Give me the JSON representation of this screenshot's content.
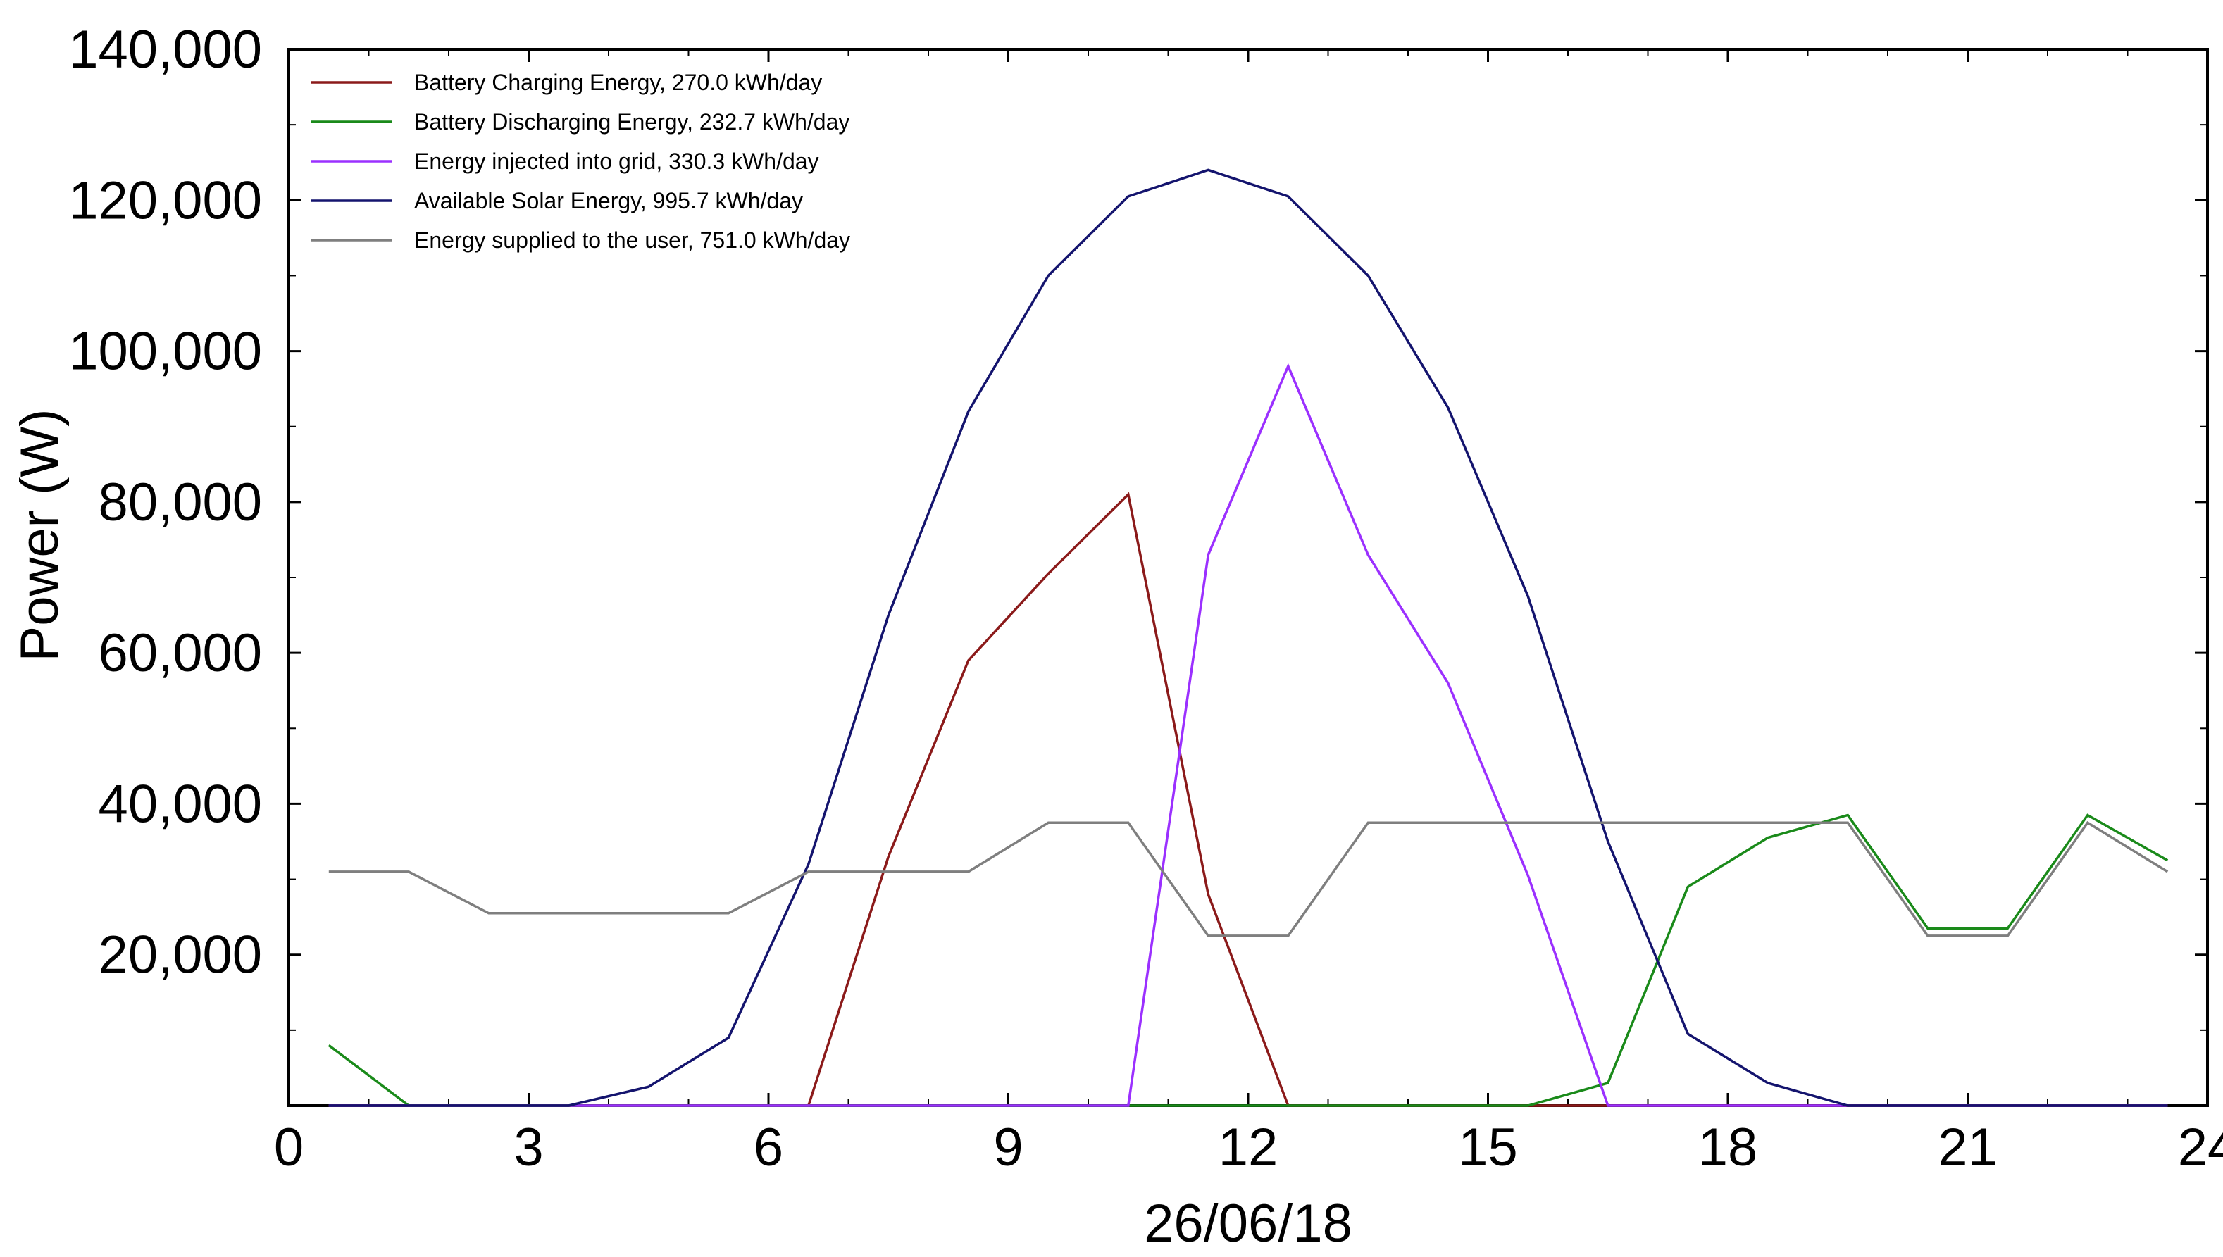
{
  "chart_data": {
    "type": "line",
    "title": "",
    "xlabel": "26/06/18",
    "ylabel": "Power (W)",
    "xlim": [
      0,
      24
    ],
    "ylim": [
      0,
      140000
    ],
    "x_ticks": [
      0,
      3,
      6,
      9,
      12,
      15,
      18,
      21,
      24
    ],
    "x_tick_labels": [
      "0",
      "3",
      "6",
      "9",
      "12",
      "15",
      "18",
      "21",
      "24"
    ],
    "y_ticks": [
      20000,
      40000,
      60000,
      80000,
      100000,
      120000,
      140000
    ],
    "y_tick_labels": [
      "20,000",
      "40,000",
      "60,000",
      "80,000",
      "100,000",
      "120,000",
      "140,000"
    ],
    "x": [
      0.5,
      1.5,
      2.5,
      3.5,
      4.5,
      5.5,
      6.5,
      7.5,
      8.5,
      9.5,
      10.5,
      11.5,
      12.5,
      13.5,
      14.5,
      15.5,
      16.5,
      17.5,
      18.5,
      19.5,
      20.5,
      21.5,
      22.5,
      23.5
    ],
    "series": [
      {
        "name": "Battery Charging Energy",
        "legend_label": "Battery Charging Energy,  270.0 kWh/day",
        "color": "#8b1a1a",
        "values": [
          0,
          0,
          0,
          0,
          0,
          0,
          0,
          33000,
          59000,
          70500,
          81000,
          28000,
          0,
          0,
          0,
          0,
          0,
          0,
          0,
          0,
          0,
          0,
          0,
          0
        ]
      },
      {
        "name": "Battery Discharging Energy",
        "legend_label": "Battery Discharging Energy,  232.7 kWh/day",
        "color": "#1a8a1a",
        "values": [
          8000,
          0,
          0,
          0,
          0,
          0,
          0,
          0,
          0,
          0,
          0,
          0,
          0,
          0,
          0,
          0,
          3000,
          29000,
          35500,
          38500,
          23500,
          23500,
          38500,
          32500
        ]
      },
      {
        "name": "Energy injected into grid",
        "legend_label": "Energy injected into grid,  330.3 kWh/day",
        "color": "#9b30ff",
        "values": [
          0,
          0,
          0,
          0,
          0,
          0,
          0,
          0,
          0,
          0,
          0,
          73000,
          98000,
          73000,
          56000,
          30500,
          0,
          0,
          0,
          0,
          0,
          0,
          0,
          0
        ]
      },
      {
        "name": "Available Solar Energy",
        "legend_label": "Available Solar Energy,  995.7 kWh/day",
        "color": "#14146e",
        "values": [
          0,
          0,
          0,
          0,
          2500,
          9000,
          32000,
          65000,
          92000,
          110000,
          120500,
          124000,
          120500,
          110000,
          92500,
          67500,
          35000,
          9500,
          3000,
          0,
          0,
          0,
          0,
          0
        ]
      },
      {
        "name": "Energy supplied to the user",
        "legend_label": "Energy supplied to the user,  751.0 kWh/day",
        "color": "#7f7f7f",
        "values": [
          31000,
          31000,
          25500,
          25500,
          25500,
          25500,
          31000,
          31000,
          31000,
          37500,
          37500,
          22500,
          22500,
          37500,
          37500,
          37500,
          37500,
          37500,
          37500,
          37500,
          22500,
          22500,
          37500,
          31000
        ]
      }
    ],
    "legend_position": "top-left",
    "grid": false
  }
}
